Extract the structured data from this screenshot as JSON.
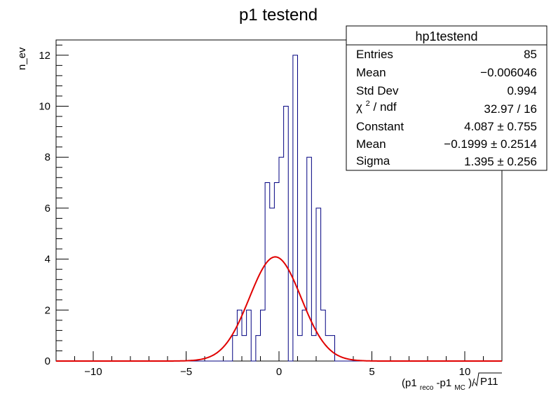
{
  "chart_data": {
    "type": "bar",
    "title": "p1 testend",
    "ylabel": "n_ev",
    "xlabel": {
      "base1": "(p1",
      "sub1": "reco",
      "base2": "-p1",
      "sub2": "MC",
      "base3": ")/",
      "sqrt_arg": "P11"
    },
    "xlim": [
      -12,
      12
    ],
    "ylim": [
      0,
      12.6
    ],
    "x_ticks": [
      -10,
      -5,
      0,
      5,
      10
    ],
    "y_ticks": [
      0,
      2,
      4,
      6,
      8,
      10,
      12
    ],
    "grid": false,
    "series": [
      {
        "kind": "histogram",
        "bin_width": 0.25,
        "bin_edges_start": -2.5,
        "counts": [
          1,
          2,
          1,
          2,
          0,
          1,
          2,
          7,
          6,
          7,
          8,
          10,
          0,
          12,
          1,
          2,
          8,
          1,
          6,
          2,
          1,
          1
        ],
        "color": "#000080"
      },
      {
        "kind": "gaussian_fit",
        "constant": 4.087,
        "mean": -0.1999,
        "sigma": 1.395,
        "color": "#e00000"
      }
    ],
    "legend": "top-right",
    "stats_box": {
      "title": "hp1testend",
      "rows": [
        {
          "label": "Entries",
          "value": "85"
        },
        {
          "label": "Mean",
          "value": "−0.006046"
        },
        {
          "label": "Std Dev",
          "value": "0.994"
        },
        {
          "label_chi": "χ",
          "label_sup": "2",
          "label_rest": " / ndf",
          "value": "32.97 / 16"
        },
        {
          "label": "Constant",
          "value": "4.087 ± 0.755"
        },
        {
          "label": "Mean",
          "value": "−0.1999 ± 0.2514"
        },
        {
          "label": "Sigma",
          "value": "1.395 ± 0.256"
        }
      ]
    }
  }
}
